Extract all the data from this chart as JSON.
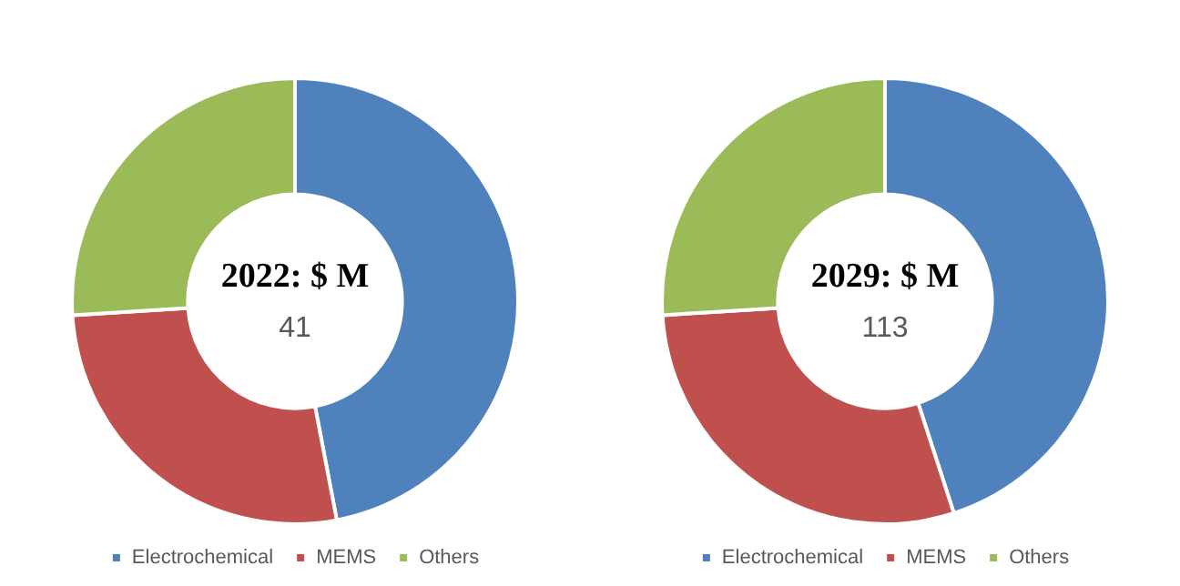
{
  "chart_data": [
    {
      "type": "donut",
      "title": "2022: $ M",
      "annotations": [
        "41"
      ],
      "categories": [
        "Electrochemical",
        "MEMS",
        "Others"
      ],
      "values": [
        47,
        27,
        26
      ],
      "colors": [
        "#4f81bd",
        "#c0504d",
        "#9bbb59"
      ],
      "legend": "bottom"
    },
    {
      "type": "donut",
      "title": "2029: $ M",
      "annotations": [
        "113"
      ],
      "categories": [
        "Electrochemical",
        "MEMS",
        "Others"
      ],
      "values": [
        45,
        29,
        26
      ],
      "colors": [
        "#4f81bd",
        "#c0504d",
        "#9bbb59"
      ],
      "legend": "bottom"
    }
  ]
}
